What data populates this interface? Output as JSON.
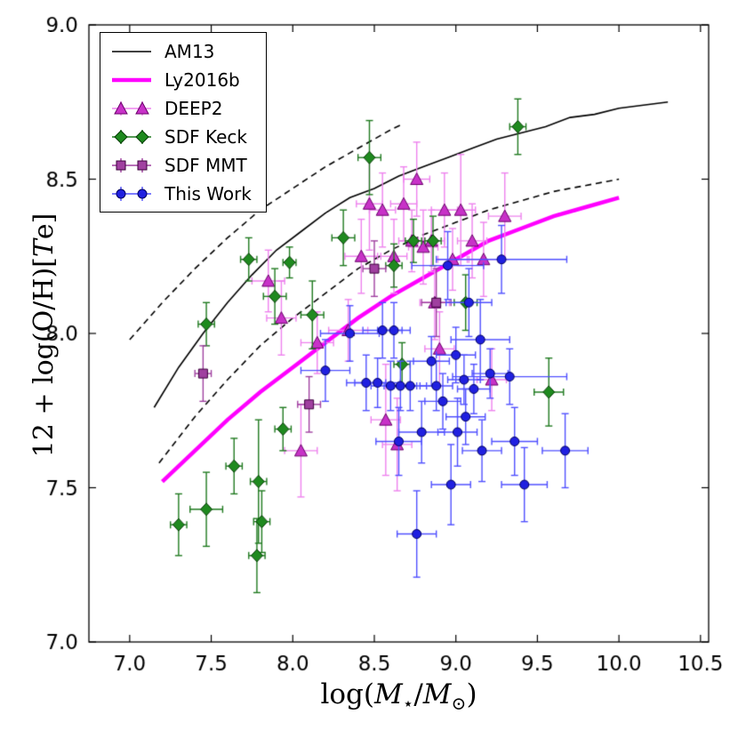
{
  "page": {
    "background": "#ffffff"
  },
  "labels": {
    "x": {
      "pre": "log(",
      "m1": "M",
      "s1": "⋆",
      "mid": "/",
      "m2": "M",
      "s2": "⊙",
      "post": ")"
    },
    "y": {
      "pre": "12 + log(O/H)[",
      "t": "T",
      "post": "e]"
    }
  },
  "chart_data": {
    "type": "scatter",
    "title": "",
    "xlabel": "log(M⋆/M⊙)",
    "ylabel": "12 + log(O/H) [Te]",
    "xlim": [
      6.75,
      10.55
    ],
    "ylim": [
      7.0,
      9.0
    ],
    "grid": false,
    "legend": {
      "position": "upper left"
    },
    "xticks": [
      {
        "v": 7.0,
        "label": "7.0"
      },
      {
        "v": 7.5,
        "label": "7.5"
      },
      {
        "v": 8.0,
        "label": "8.0"
      },
      {
        "v": 8.5,
        "label": "8.5"
      },
      {
        "v": 9.0,
        "label": "9.0"
      },
      {
        "v": 9.5,
        "label": "9.5"
      },
      {
        "v": 10.0,
        "label": "10.0"
      },
      {
        "v": 10.5,
        "label": "10.5"
      }
    ],
    "yticks": [
      {
        "v": 7.0,
        "label": "7.0"
      },
      {
        "v": 7.5,
        "label": "7.5"
      },
      {
        "v": 8.0,
        "label": "8.0"
      },
      {
        "v": 8.5,
        "label": "8.5"
      },
      {
        "v": 9.0,
        "label": "9.0"
      }
    ],
    "lines": [
      {
        "name": "AM13",
        "style": "solid",
        "color": "#000000",
        "width": 1.6,
        "points": [
          [
            7.15,
            7.76
          ],
          [
            7.3,
            7.89
          ],
          [
            7.45,
            8.0
          ],
          [
            7.6,
            8.1
          ],
          [
            7.75,
            8.19
          ],
          [
            7.9,
            8.27
          ],
          [
            8.05,
            8.33
          ],
          [
            8.2,
            8.39
          ],
          [
            8.35,
            8.44
          ],
          [
            8.5,
            8.47
          ],
          [
            8.65,
            8.51
          ],
          [
            8.8,
            8.54
          ],
          [
            8.95,
            8.57
          ],
          [
            9.1,
            8.6
          ],
          [
            9.25,
            8.63
          ],
          [
            9.4,
            8.65
          ],
          [
            9.55,
            8.67
          ],
          [
            9.7,
            8.7
          ],
          [
            9.85,
            8.71
          ],
          [
            10.0,
            8.73
          ],
          [
            10.15,
            8.74
          ],
          [
            10.3,
            8.75
          ]
        ]
      },
      {
        "name": "AM13-upper-dashed",
        "style": "dashed",
        "color": "#000000",
        "width": 1.6,
        "points": [
          [
            7.0,
            7.98
          ],
          [
            7.2,
            8.1
          ],
          [
            7.4,
            8.21
          ],
          [
            7.6,
            8.31
          ],
          [
            7.8,
            8.4
          ],
          [
            8.0,
            8.47
          ],
          [
            8.2,
            8.54
          ],
          [
            8.4,
            8.6
          ],
          [
            8.6,
            8.66
          ],
          [
            8.68,
            8.68
          ]
        ]
      },
      {
        "name": "AM13-lower-dashed",
        "style": "dashed",
        "color": "#000000",
        "width": 1.6,
        "points": [
          [
            7.18,
            7.58
          ],
          [
            7.4,
            7.73
          ],
          [
            7.6,
            7.85
          ],
          [
            7.8,
            7.96
          ],
          [
            8.0,
            8.05
          ],
          [
            8.2,
            8.13
          ],
          [
            8.4,
            8.21
          ],
          [
            8.6,
            8.27
          ],
          [
            8.8,
            8.32
          ],
          [
            9.0,
            8.36
          ],
          [
            9.2,
            8.4
          ],
          [
            9.4,
            8.43
          ],
          [
            9.6,
            8.46
          ],
          [
            9.8,
            8.48
          ],
          [
            10.0,
            8.5
          ]
        ]
      },
      {
        "name": "Ly2016b",
        "style": "solid",
        "color": "#ff00ff",
        "width": 4.5,
        "points": [
          [
            7.2,
            7.52
          ],
          [
            7.4,
            7.62
          ],
          [
            7.6,
            7.72
          ],
          [
            7.8,
            7.81
          ],
          [
            8.0,
            7.89
          ],
          [
            8.2,
            7.97
          ],
          [
            8.4,
            8.05
          ],
          [
            8.6,
            8.12
          ],
          [
            8.8,
            8.18
          ],
          [
            9.0,
            8.24
          ],
          [
            9.2,
            8.3
          ],
          [
            9.4,
            8.34
          ],
          [
            9.6,
            8.38
          ],
          [
            9.8,
            8.41
          ],
          [
            10.0,
            8.44
          ]
        ]
      }
    ],
    "series": [
      {
        "name": "DEEP2",
        "marker": "triangle",
        "color": "#c832c8",
        "edge": "#6a006a",
        "err_color": "#ee82ee",
        "points": [
          [
            7.85,
            8.17,
            0.1,
            0.1
          ],
          [
            7.93,
            8.05,
            0.09,
            0.12
          ],
          [
            8.05,
            7.62,
            0.1,
            0.15
          ],
          [
            8.15,
            7.97,
            0.1,
            0.1
          ],
          [
            8.34,
            8.01,
            0.12,
            0.1
          ],
          [
            8.42,
            8.25,
            0.1,
            0.12
          ],
          [
            8.47,
            8.42,
            0.08,
            0.15
          ],
          [
            8.55,
            8.4,
            0.08,
            0.12
          ],
          [
            8.57,
            7.72,
            0.09,
            0.18
          ],
          [
            8.62,
            8.25,
            0.08,
            0.12
          ],
          [
            8.64,
            7.64,
            0.09,
            0.15
          ],
          [
            8.68,
            8.42,
            0.08,
            0.12
          ],
          [
            8.73,
            8.3,
            0.08,
            0.1
          ],
          [
            8.76,
            8.5,
            0.08,
            0.12
          ],
          [
            8.8,
            8.28,
            0.09,
            0.12
          ],
          [
            8.85,
            8.3,
            0.08,
            0.1
          ],
          [
            8.87,
            8.1,
            0.09,
            0.12
          ],
          [
            8.9,
            7.95,
            0.09,
            0.12
          ],
          [
            8.93,
            8.4,
            0.08,
            0.12
          ],
          [
            8.98,
            8.24,
            0.09,
            0.1
          ],
          [
            9.03,
            8.4,
            0.09,
            0.18
          ],
          [
            9.1,
            8.3,
            0.09,
            0.12
          ],
          [
            9.17,
            8.24,
            0.09,
            0.12
          ],
          [
            9.22,
            7.85,
            0.09,
            0.1
          ],
          [
            9.3,
            8.38,
            0.1,
            0.14
          ]
        ]
      },
      {
        "name": "SDF Keck",
        "marker": "diamond",
        "color": "#1f8a1f",
        "edge": "#063d06",
        "err_color": "#1f7a1f",
        "points": [
          [
            7.3,
            7.38,
            0.05,
            0.1
          ],
          [
            7.47,
            7.43,
            0.1,
            0.12
          ],
          [
            7.47,
            8.03,
            0.05,
            0.07
          ],
          [
            7.64,
            7.57,
            0.05,
            0.09
          ],
          [
            7.73,
            8.24,
            0.05,
            0.07
          ],
          [
            7.79,
            7.52,
            0.05,
            0.2
          ],
          [
            7.81,
            7.39,
            0.05,
            0.1
          ],
          [
            7.78,
            7.28,
            0.05,
            0.12
          ],
          [
            7.89,
            8.12,
            0.07,
            0.09
          ],
          [
            7.94,
            7.69,
            0.05,
            0.07
          ],
          [
            7.98,
            8.23,
            0.04,
            0.05
          ],
          [
            8.12,
            8.06,
            0.07,
            0.11
          ],
          [
            8.31,
            8.31,
            0.07,
            0.09
          ],
          [
            8.47,
            8.57,
            0.07,
            0.12
          ],
          [
            8.62,
            8.22,
            0.05,
            0.07
          ],
          [
            8.67,
            7.9,
            0.05,
            0.07
          ],
          [
            8.74,
            8.3,
            0.05,
            0.07
          ],
          [
            8.86,
            8.3,
            0.05,
            0.08
          ],
          [
            9.06,
            8.1,
            0.07,
            0.09
          ],
          [
            9.38,
            8.67,
            0.05,
            0.09
          ],
          [
            9.57,
            7.81,
            0.09,
            0.11
          ]
        ]
      },
      {
        "name": "SDF MMT",
        "marker": "square",
        "color": "#a040a0",
        "edge": "#3d003d",
        "err_color": "#a040a0",
        "points": [
          [
            7.45,
            7.87,
            0.05,
            0.09
          ],
          [
            8.1,
            7.77,
            0.07,
            0.09
          ],
          [
            8.5,
            8.21,
            0.07,
            0.09
          ],
          [
            8.88,
            8.1,
            0.09,
            0.11
          ]
        ]
      },
      {
        "name": "This Work",
        "marker": "circle",
        "color": "#2020e0",
        "edge": "#000060",
        "err_color": "#5050ff",
        "points": [
          [
            8.2,
            7.88,
            0.15,
            0.1
          ],
          [
            8.35,
            8.0,
            0.18,
            0.09
          ],
          [
            8.45,
            7.84,
            0.12,
            0.09
          ],
          [
            8.52,
            7.84,
            0.14,
            0.08
          ],
          [
            8.55,
            8.01,
            0.12,
            0.09
          ],
          [
            8.62,
            8.01,
            0.1,
            0.09
          ],
          [
            8.6,
            7.83,
            0.12,
            0.08
          ],
          [
            8.66,
            7.83,
            0.1,
            0.08
          ],
          [
            8.65,
            7.65,
            0.14,
            0.11
          ],
          [
            8.72,
            7.83,
            0.1,
            0.08
          ],
          [
            8.76,
            7.35,
            0.12,
            0.14
          ],
          [
            8.79,
            7.68,
            0.14,
            0.1
          ],
          [
            8.85,
            7.91,
            0.11,
            0.08
          ],
          [
            8.88,
            7.83,
            0.1,
            0.08
          ],
          [
            8.92,
            7.78,
            0.11,
            0.09
          ],
          [
            8.95,
            8.22,
            0.22,
            0.11
          ],
          [
            8.97,
            7.51,
            0.12,
            0.13
          ],
          [
            9.0,
            7.93,
            0.12,
            0.09
          ],
          [
            9.01,
            7.68,
            0.12,
            0.11
          ],
          [
            9.05,
            7.85,
            0.1,
            0.08
          ],
          [
            9.06,
            7.73,
            0.12,
            0.09
          ],
          [
            9.08,
            8.1,
            0.14,
            0.11
          ],
          [
            9.11,
            7.82,
            0.1,
            0.08
          ],
          [
            9.15,
            7.98,
            0.18,
            0.13
          ],
          [
            9.16,
            7.62,
            0.12,
            0.1
          ],
          [
            9.21,
            7.87,
            0.11,
            0.08
          ],
          [
            9.28,
            8.24,
            0.4,
            0.11
          ],
          [
            9.33,
            7.86,
            0.35,
            0.09
          ],
          [
            9.36,
            7.65,
            0.14,
            0.11
          ],
          [
            9.42,
            7.51,
            0.14,
            0.12
          ],
          [
            9.67,
            7.62,
            0.14,
            0.12
          ]
        ]
      }
    ]
  }
}
